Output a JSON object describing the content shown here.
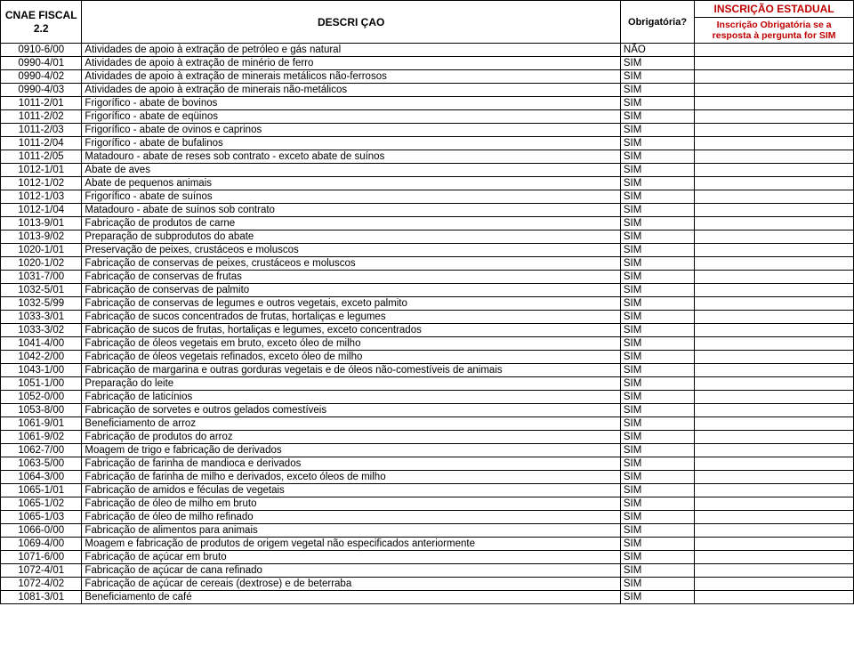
{
  "header": {
    "cnae": "CNAE FISCAL 2.2",
    "descricao": "DESCRI ÇAO",
    "obrigatoria": "Obrigatória?",
    "inscricao_top": "INSCRIÇÃO ESTADUAL",
    "inscricao_sub": "Inscrição Obrigatória se a resposta à pergunta for SIM"
  },
  "colors": {
    "red": "#c00000",
    "black": "#000000",
    "bg": "#ffffff"
  },
  "rows": [
    {
      "code": "0910-6/00",
      "desc": "Atividades de apoio à extração de petróleo e gás natural",
      "obrig": "NÃO"
    },
    {
      "code": "0990-4/01",
      "desc": "Atividades de apoio à extração de minério de ferro",
      "obrig": "SIM"
    },
    {
      "code": "0990-4/02",
      "desc": "Atividades de apoio à extração de minerais metálicos não-ferrosos",
      "obrig": "SIM"
    },
    {
      "code": "0990-4/03",
      "desc": "Atividades de apoio à extração de minerais não-metálicos",
      "obrig": "SIM"
    },
    {
      "code": "1011-2/01",
      "desc": "Frigorífico - abate de bovinos",
      "obrig": "SIM"
    },
    {
      "code": "1011-2/02",
      "desc": "Frigorífico - abate de eqüinos",
      "obrig": "SIM"
    },
    {
      "code": "1011-2/03",
      "desc": "Frigorífico - abate de ovinos e caprinos",
      "obrig": "SIM"
    },
    {
      "code": "1011-2/04",
      "desc": "Frigorífico - abate de bufalinos",
      "obrig": "SIM"
    },
    {
      "code": "1011-2/05",
      "desc": "Matadouro - abate de reses sob contrato - exceto abate de suínos",
      "obrig": "SIM"
    },
    {
      "code": "1012-1/01",
      "desc": "Abate de aves",
      "obrig": "SIM"
    },
    {
      "code": "1012-1/02",
      "desc": "Abate de pequenos animais",
      "obrig": "SIM"
    },
    {
      "code": "1012-1/03",
      "desc": "Frigorífico - abate de suínos",
      "obrig": "SIM"
    },
    {
      "code": "1012-1/04",
      "desc": "Matadouro - abate de suínos sob contrato",
      "obrig": "SIM"
    },
    {
      "code": "1013-9/01",
      "desc": "Fabricação de produtos de carne",
      "obrig": "SIM"
    },
    {
      "code": "1013-9/02",
      "desc": "Preparação de subprodutos do abate",
      "obrig": "SIM"
    },
    {
      "code": "1020-1/01",
      "desc": "Preservação de peixes, crustáceos e moluscos",
      "obrig": "SIM"
    },
    {
      "code": "1020-1/02",
      "desc": "Fabricação de conservas de peixes, crustáceos e moluscos",
      "obrig": "SIM"
    },
    {
      "code": "1031-7/00",
      "desc": "Fabricação de conservas de frutas",
      "obrig": "SIM"
    },
    {
      "code": "1032-5/01",
      "desc": "Fabricação de conservas de palmito",
      "obrig": "SIM"
    },
    {
      "code": "1032-5/99",
      "desc": "Fabricação de conservas de legumes e outros vegetais, exceto palmito",
      "obrig": "SIM"
    },
    {
      "code": "1033-3/01",
      "desc": "Fabricação de sucos concentrados de frutas, hortaliças e legumes",
      "obrig": "SIM"
    },
    {
      "code": "1033-3/02",
      "desc": "Fabricação de sucos de frutas, hortaliças e legumes, exceto concentrados",
      "obrig": "SIM"
    },
    {
      "code": "1041-4/00",
      "desc": "Fabricação de óleos vegetais em bruto, exceto óleo de milho",
      "obrig": "SIM"
    },
    {
      "code": "1042-2/00",
      "desc": "Fabricação de óleos vegetais refinados, exceto óleo de milho",
      "obrig": "SIM"
    },
    {
      "code": "1043-1/00",
      "desc": "Fabricação de margarina e outras gorduras vegetais e de óleos não-comestíveis de animais",
      "obrig": "SIM"
    },
    {
      "code": "1051-1/00",
      "desc": "Preparação do leite",
      "obrig": "SIM"
    },
    {
      "code": "1052-0/00",
      "desc": "Fabricação de laticínios",
      "obrig": "SIM"
    },
    {
      "code": "1053-8/00",
      "desc": "Fabricação de sorvetes e outros gelados comestíveis",
      "obrig": "SIM"
    },
    {
      "code": "1061-9/01",
      "desc": "Beneficiamento de arroz",
      "obrig": "SIM"
    },
    {
      "code": "1061-9/02",
      "desc": "Fabricação de produtos do arroz",
      "obrig": "SIM"
    },
    {
      "code": "1062-7/00",
      "desc": "Moagem de trigo e fabricação de derivados",
      "obrig": "SIM"
    },
    {
      "code": "1063-5/00",
      "desc": "Fabricação de farinha de mandioca e derivados",
      "obrig": "SIM"
    },
    {
      "code": "1064-3/00",
      "desc": "Fabricação de farinha de milho e derivados, exceto óleos de milho",
      "obrig": "SIM"
    },
    {
      "code": "1065-1/01",
      "desc": "Fabricação de amidos e féculas de vegetais",
      "obrig": "SIM"
    },
    {
      "code": "1065-1/02",
      "desc": "Fabricação de óleo de milho em bruto",
      "obrig": "SIM"
    },
    {
      "code": "1065-1/03",
      "desc": "Fabricação de óleo de milho refinado",
      "obrig": "SIM"
    },
    {
      "code": "1066-0/00",
      "desc": "Fabricação de alimentos para animais",
      "obrig": "SIM"
    },
    {
      "code": "1069-4/00",
      "desc": "Moagem e fabricação de produtos de origem vegetal não especificados anteriormente",
      "obrig": "SIM"
    },
    {
      "code": "1071-6/00",
      "desc": "Fabricação de açúcar em bruto",
      "obrig": "SIM"
    },
    {
      "code": "1072-4/01",
      "desc": "Fabricação de açúcar de cana refinado",
      "obrig": "SIM"
    },
    {
      "code": "1072-4/02",
      "desc": "Fabricação de açúcar de cereais (dextrose) e de beterraba",
      "obrig": "SIM"
    },
    {
      "code": "1081-3/01",
      "desc": "Beneficiamento de café",
      "obrig": "SIM"
    }
  ]
}
